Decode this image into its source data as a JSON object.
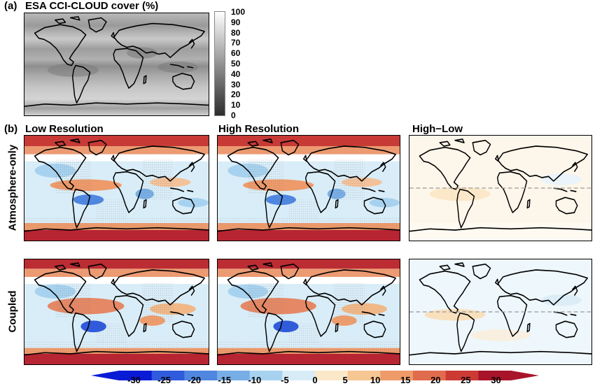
{
  "panel_a": {
    "label": "(a)",
    "title": "ESA CCI-CLOUD cover (%)",
    "scale_ticks": [
      "100",
      "90",
      "80",
      "70",
      "60",
      "50",
      "40",
      "30",
      "20",
      "10",
      "0"
    ]
  },
  "panel_b": {
    "label": "(b)",
    "columns": [
      "Low Resolution",
      "High Resolution",
      "High−Low"
    ],
    "rows": [
      "Atmosphere-only",
      "Coupled"
    ]
  },
  "colorbar": {
    "ticks": [
      "-30",
      "-25",
      "-20",
      "-15",
      "-10",
      "-5",
      "0",
      "5",
      "10",
      "15",
      "20",
      "25",
      "30"
    ],
    "colors": [
      "#0a1bd6",
      "#2f5bdc",
      "#4f86e0",
      "#78aee6",
      "#a7d2ef",
      "#d7ecf7",
      "#ffffff",
      "#fbe8c9",
      "#f6c693",
      "#ee9b69",
      "#e06b4d",
      "#cc3a34",
      "#a8142a"
    ]
  }
}
